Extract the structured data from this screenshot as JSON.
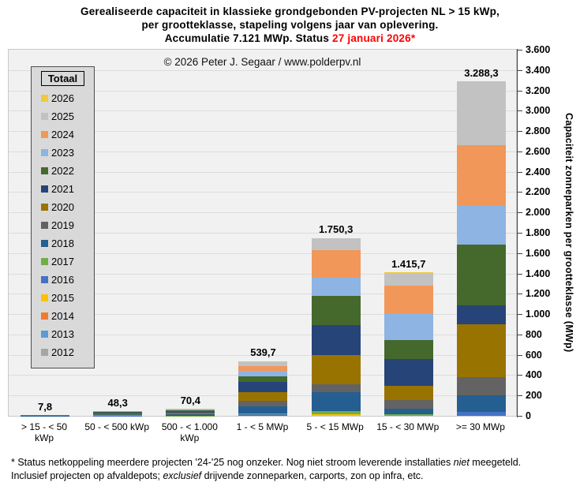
{
  "title": {
    "line1": "Gerealiseerde capaciteit in klassieke grondgebonden PV-projecten NL > 15 kWp,",
    "line2": "per grootteklasse, stapeling volgens jaar van oplevering.",
    "line3_prefix": "Accumulatie 7.121 MWp. Status ",
    "line3_date": "27 januari 2026*",
    "date_color": "#FF0000"
  },
  "copyright": "© 2026 Peter J. Segaar / www.polderpv.nl",
  "legend": {
    "title": "Totaal",
    "items": [
      {
        "label": "2026",
        "color": "#F2C83C"
      },
      {
        "label": "2025",
        "color": "#C2C2C2"
      },
      {
        "label": "2024",
        "color": "#F1975A"
      },
      {
        "label": "2023",
        "color": "#8DB4E2"
      },
      {
        "label": "2022",
        "color": "#45682C"
      },
      {
        "label": "2021",
        "color": "#264478"
      },
      {
        "label": "2020",
        "color": "#997300"
      },
      {
        "label": "2019",
        "color": "#636363"
      },
      {
        "label": "2018",
        "color": "#255E91"
      },
      {
        "label": "2017",
        "color": "#70AD47"
      },
      {
        "label": "2016",
        "color": "#4472C4"
      },
      {
        "label": "2015",
        "color": "#FFC000"
      },
      {
        "label": "2014",
        "color": "#ED7D31"
      },
      {
        "label": "2013",
        "color": "#5B9BD5"
      },
      {
        "label": "2012",
        "color": "#A5A5A5"
      }
    ]
  },
  "chart_data": {
    "type": "bar",
    "stacked": true,
    "title": "Gerealiseerde capaciteit in klassieke grondgebonden PV-projecten NL > 15 kWp, per grootteklasse, stapeling volgens jaar van oplevering. Accumulatie 7.121 MWp. Status 27 januari 2026*",
    "categories": [
      "> 15 - < 50 kWp",
      "50 - < 500 kWp",
      "500 - < 1.000 kWp",
      "1 - < 5 MWp",
      "5 - < 15 MWp",
      "15 - < 30 MWp",
      ">= 30 MWp"
    ],
    "categories_lines": [
      [
        "> 15 - < 50",
        "kWp"
      ],
      [
        "50 - < 500 kWp"
      ],
      [
        "500 - < 1.000",
        "kWp"
      ],
      [
        "1 - < 5 MWp"
      ],
      [
        "5 - < 15 MWp"
      ],
      [
        "15 - < 30 MWp"
      ],
      [
        ">= 30 MWp"
      ]
    ],
    "series": [
      {
        "name": "2012",
        "color": "#A5A5A5",
        "values": [
          0,
          0,
          0,
          0,
          0,
          0,
          0
        ]
      },
      {
        "name": "2013",
        "color": "#5B9BD5",
        "values": [
          0,
          0,
          0,
          0,
          0,
          0,
          0
        ]
      },
      {
        "name": "2014",
        "color": "#ED7D31",
        "values": [
          0,
          0,
          0,
          0,
          0,
          0,
          0
        ]
      },
      {
        "name": "2015",
        "color": "#FFC000",
        "values": [
          0,
          0,
          0,
          0,
          12,
          0,
          0
        ]
      },
      {
        "name": "2016",
        "color": "#4472C4",
        "values": [
          0,
          2,
          0,
          12,
          0,
          0,
          38.3
        ]
      },
      {
        "name": "2017",
        "color": "#70AD47",
        "values": [
          0,
          3,
          4,
          12,
          38,
          14,
          0
        ]
      },
      {
        "name": "2018",
        "color": "#255E91",
        "values": [
          2,
          7,
          8,
          69,
          184,
          54,
          160
        ]
      },
      {
        "name": "2019",
        "color": "#636363",
        "values": [
          1,
          5,
          7,
          57,
          79,
          88,
          185
        ]
      },
      {
        "name": "2020",
        "color": "#997300",
        "values": [
          1.5,
          8,
          12,
          85,
          288,
          142,
          520
        ]
      },
      {
        "name": "2021",
        "color": "#264478",
        "values": [
          1.3,
          7,
          11,
          100,
          288,
          258,
          180
        ]
      },
      {
        "name": "2022",
        "color": "#45682C",
        "values": [
          1,
          6,
          10,
          53,
          293,
          189,
          600
        ]
      },
      {
        "name": "2023",
        "color": "#8DB4E2",
        "values": [
          1,
          5,
          7,
          57,
          178,
          262,
          390
        ]
      },
      {
        "name": "2024",
        "color": "#F1975A",
        "values": [
          0,
          3,
          6,
          47,
          270,
          270,
          585
        ]
      },
      {
        "name": "2025",
        "color": "#C2C2C2",
        "values": [
          0,
          2.3,
          5.4,
          47.7,
          120.3,
          118,
          630
        ]
      },
      {
        "name": "2026",
        "color": "#F2C83C",
        "values": [
          0,
          0,
          0,
          0,
          0,
          20.7,
          0
        ]
      }
    ],
    "totals": [
      7.8,
      48.3,
      70.4,
      539.7,
      1750.3,
      1415.7,
      3288.3
    ],
    "total_labels": [
      "7,8",
      "48,3",
      "70,4",
      "539,7",
      "1.750,3",
      "1.415,7",
      "3.288,3"
    ],
    "xlabel": "",
    "ylabel": "Capaciteit zonneparken per grootteklasse (MWp)",
    "ylim": [
      0,
      3600
    ],
    "ytick_step": 200,
    "grid": true,
    "legend_position": "inside-upper-left"
  },
  "footnotes": [
    [
      {
        "text": "* Status netkoppeling meerdere projecten '24-'25 nog onzeker. Nog niet stroom leverende installaties "
      },
      {
        "text": "niet",
        "italic": true
      },
      {
        "text": " meegeteld."
      }
    ],
    [
      {
        "text": "Inclusief projecten op afvaldepots; "
      },
      {
        "text": "exclusief",
        "italic": true
      },
      {
        "text": " drijvende zonneparken, carports, zon op infra, etc."
      }
    ]
  ]
}
